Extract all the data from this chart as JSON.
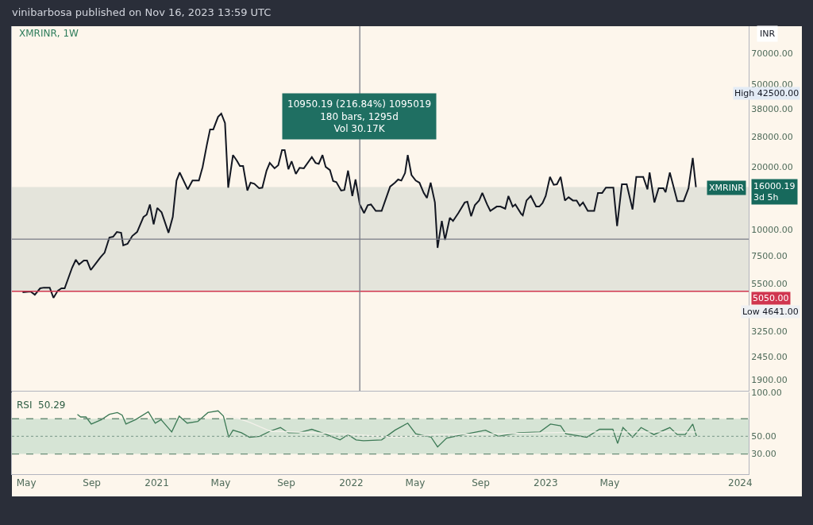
{
  "chart_data": [
    {
      "type": "line",
      "title": "vinibarbosa published on Nov 16, 2023 13:59 UTC",
      "subtitle": "XMRINR, 1W",
      "ylabel": "INR",
      "log": "y",
      "tick_labels": "y",
      "xlim": [
        "2020-04-04",
        "2024-01-17"
      ],
      "ylim": [
        1680,
        94900
      ],
      "yticks": [
        {
          "value": 1900,
          "label": "1900.00"
        },
        {
          "value": 2450,
          "label": "2450.00"
        },
        {
          "value": 3250,
          "label": "3250.00"
        },
        {
          "value": 5500,
          "label": "5500.00"
        },
        {
          "value": 7500,
          "label": "7500.00"
        },
        {
          "value": 10000,
          "label": "10000.00"
        },
        {
          "value": 20000,
          "label": "20000.00"
        },
        {
          "value": 28000,
          "label": "28000.00"
        },
        {
          "value": 38000,
          "label": "38000.00"
        },
        {
          "value": 50000,
          "label": "50000.00"
        },
        {
          "value": 70000,
          "label": "70000.00"
        }
      ],
      "x": [
        "2020-04-24",
        "2020-05-09",
        "2020-05-17",
        "2020-05-27",
        "2020-06-03",
        "2020-06-14",
        "2020-06-21",
        "2020-06-29",
        "2020-07-06",
        "2020-07-12",
        "2020-07-26",
        "2020-08-02",
        "2020-08-08",
        "2020-08-17",
        "2020-08-23",
        "2020-08-30",
        "2020-09-08",
        "2020-09-17",
        "2020-09-25",
        "2020-10-04",
        "2020-10-11",
        "2020-10-18",
        "2020-10-26",
        "2020-10-30",
        "2020-11-07",
        "2020-11-16",
        "2020-11-25",
        "2020-12-07",
        "2020-12-13",
        "2020-12-19",
        "2020-12-26",
        "2021-01-02",
        "2021-01-10",
        "2021-01-23",
        "2021-01-31",
        "2021-02-07",
        "2021-02-13",
        "2021-02-28",
        "2021-03-09",
        "2021-03-21",
        "2021-03-28",
        "2021-04-05",
        "2021-04-11",
        "2021-04-17",
        "2021-04-26",
        "2021-05-02",
        "2021-05-09",
        "2021-05-15",
        "2021-05-24",
        "2021-05-31",
        "2021-06-06",
        "2021-06-12",
        "2021-06-20",
        "2021-06-26",
        "2021-07-03",
        "2021-07-12",
        "2021-07-18",
        "2021-07-26",
        "2021-08-01",
        "2021-08-10",
        "2021-08-17",
        "2021-08-24",
        "2021-08-29",
        "2021-09-05",
        "2021-09-11",
        "2021-09-19",
        "2021-09-26",
        "2021-10-04",
        "2021-10-19",
        "2021-10-26",
        "2021-11-01",
        "2021-11-08",
        "2021-11-14",
        "2021-11-22",
        "2021-11-28",
        "2021-12-04",
        "2021-12-13",
        "2021-12-19",
        "2021-12-26",
        "2022-01-03",
        "2022-01-09",
        "2022-01-17",
        "2022-01-25",
        "2022-02-01",
        "2022-02-07",
        "2022-02-16",
        "2022-02-27",
        "2022-03-15",
        "2022-03-24",
        "2022-03-30",
        "2022-04-05",
        "2022-04-12",
        "2022-04-17",
        "2022-04-24",
        "2022-05-02",
        "2022-05-09",
        "2022-05-17",
        "2022-05-23",
        "2022-05-30",
        "2022-06-07",
        "2022-06-12",
        "2022-06-20",
        "2022-06-26",
        "2022-07-05",
        "2022-07-11",
        "2022-07-21",
        "2022-08-02",
        "2022-08-07",
        "2022-08-14",
        "2022-08-21",
        "2022-08-29",
        "2022-09-04",
        "2022-09-13",
        "2022-09-19",
        "2022-10-01",
        "2022-10-08",
        "2022-10-17",
        "2022-10-23",
        "2022-10-31",
        "2022-11-05",
        "2022-11-16",
        "2022-11-19",
        "2022-11-26",
        "2022-12-04",
        "2022-12-14",
        "2022-12-20",
        "2022-12-26",
        "2023-01-01",
        "2023-01-09",
        "2023-01-16",
        "2023-01-22",
        "2023-01-29",
        "2023-02-06",
        "2023-02-13",
        "2023-02-21",
        "2023-02-28",
        "2023-03-06",
        "2023-03-12",
        "2023-03-21",
        "2023-04-02",
        "2023-04-09",
        "2023-04-17",
        "2023-04-24",
        "2023-05-08",
        "2023-05-15",
        "2023-05-24",
        "2023-06-02",
        "2023-06-13",
        "2023-06-20",
        "2023-07-03",
        "2023-07-11",
        "2023-07-15",
        "2023-07-24",
        "2023-08-01",
        "2023-08-10",
        "2023-08-14",
        "2023-08-22",
        "2023-09-05",
        "2023-09-17",
        "2023-09-26",
        "2023-10-04",
        "2023-10-10"
      ],
      "series": [
        {
          "color": "#131722",
          "values": [
            5000,
            5040,
            4860,
            5220,
            5260,
            5260,
            4700,
            5080,
            5220,
            5220,
            6560,
            7160,
            6790,
            7100,
            7100,
            6390,
            6850,
            7350,
            7750,
            9160,
            9240,
            9740,
            9650,
            8390,
            8540,
            9320,
            9740,
            11500,
            11800,
            13200,
            10600,
            12700,
            12100,
            9650,
            11500,
            17200,
            18800,
            15600,
            17200,
            17200,
            20000,
            25600,
            30300,
            30300,
            34800,
            36100,
            32500,
            15900,
            22800,
            21500,
            20200,
            20200,
            15400,
            16800,
            16600,
            15800,
            15900,
            19200,
            20900,
            19700,
            20400,
            24100,
            24100,
            19500,
            21300,
            18500,
            19800,
            19700,
            22300,
            20900,
            20700,
            22800,
            20000,
            19300,
            17100,
            16900,
            15400,
            15500,
            19200,
            14500,
            17400,
            13200,
            12000,
            13100,
            13200,
            12300,
            12300,
            16100,
            16800,
            17400,
            17200,
            18700,
            22800,
            18300,
            17200,
            16800,
            15000,
            14200,
            16800,
            13500,
            8170,
            11000,
            8920,
            11400,
            11000,
            12000,
            13500,
            13600,
            11600,
            13100,
            13800,
            15000,
            13200,
            12300,
            12900,
            12900,
            12600,
            14500,
            12900,
            13200,
            11900,
            11700,
            13800,
            14500,
            12900,
            12900,
            13400,
            14500,
            17900,
            16400,
            16500,
            17900,
            13800,
            14300,
            13800,
            13800,
            13000,
            13500,
            12300,
            12300,
            15000,
            15000,
            15900,
            15900,
            10400,
            16500,
            16500,
            12500,
            17900,
            17900,
            15600,
            18800,
            13500,
            15800,
            15800,
            15100,
            18800,
            13700,
            13700,
            15800,
            22100,
            16000.19
          ]
        }
      ],
      "bands": [
        {
          "axis": "y",
          "from": 5050,
          "to": 16000.19,
          "color": "#dfe0d8"
        }
      ],
      "ref_lines": [
        {
          "axis": "y",
          "value": 5050,
          "label": "5050.00",
          "color": "#d0364f"
        },
        {
          "axis": "y",
          "value": 8989,
          "color": "#787b86"
        },
        {
          "axis": "x",
          "value": "2022-01-17",
          "color": "#787b86"
        }
      ],
      "annotations": [
        "10950.19 (216.84%) 1095019\n180 bars, 1295d\nVol 30.17K",
        "High 42500.00",
        "Low 4641.00",
        "XMRINR",
        "16000.19\n3d 5h"
      ]
    },
    {
      "type": "line",
      "title": "RSI  50.29",
      "xlim": [
        "2020-04-04",
        "2024-01-17"
      ],
      "ylim": [
        7,
        100
      ],
      "xticks": [
        {
          "value": "2020-05-01",
          "label": "May"
        },
        {
          "value": "2020-09-01",
          "label": "Sep"
        },
        {
          "value": "2021-01-01",
          "label": "2021"
        },
        {
          "value": "2021-05-01",
          "label": "May"
        },
        {
          "value": "2021-09-01",
          "label": "Sep"
        },
        {
          "value": "2022-01-01",
          "label": "2022"
        },
        {
          "value": "2022-05-01",
          "label": "May"
        },
        {
          "value": "2022-09-01",
          "label": "Sep"
        },
        {
          "value": "2023-01-01",
          "label": "2023"
        },
        {
          "value": "2023-05-01",
          "label": "May"
        },
        {
          "value": "2024-01-01",
          "label": "2024"
        }
      ],
      "yticks": [
        {
          "value": 30,
          "label": "30.00"
        },
        {
          "value": 50,
          "label": "50.00"
        },
        {
          "value": 100,
          "label": "100.00"
        }
      ],
      "x": [
        "2020-08-05",
        "2020-08-11",
        "2020-08-21",
        "2020-08-31",
        "2020-09-19",
        "2020-10-04",
        "2020-10-19",
        "2020-10-28",
        "2020-11-04",
        "2020-11-22",
        "2020-12-16",
        "2020-12-29",
        "2021-01-09",
        "2021-01-29",
        "2021-02-12",
        "2021-02-27",
        "2021-03-19",
        "2021-04-07",
        "2021-04-26",
        "2021-05-06",
        "2021-05-16",
        "2021-05-24",
        "2021-06-09",
        "2021-06-24",
        "2021-07-13",
        "2021-08-02",
        "2021-08-21",
        "2021-09-05",
        "2021-09-24",
        "2021-10-19",
        "2021-11-12",
        "2021-12-11",
        "2021-12-26",
        "2022-01-10",
        "2022-01-24",
        "2022-02-27",
        "2022-03-24",
        "2022-04-17",
        "2022-05-02",
        "2022-05-31",
        "2022-06-12",
        "2022-06-29",
        "2022-08-07",
        "2022-09-10",
        "2022-10-04",
        "2022-11-12",
        "2022-12-21",
        "2023-01-10",
        "2023-01-29",
        "2023-02-08",
        "2023-03-19",
        "2023-04-12",
        "2023-05-07",
        "2023-05-16",
        "2023-05-26",
        "2023-06-13",
        "2023-06-29",
        "2023-07-23",
        "2023-08-22",
        "2023-09-05",
        "2023-09-20",
        "2023-10-04",
        "2023-10-11"
      ],
      "series": [
        {
          "color": "#3d7a56",
          "values": [
            75,
            72,
            72,
            64,
            69,
            75,
            77,
            74,
            64,
            69,
            78,
            65,
            69,
            55,
            73,
            65,
            67,
            77,
            79,
            73,
            49,
            57,
            54,
            49,
            50,
            56,
            60,
            54,
            54,
            58,
            53,
            46,
            52,
            46,
            45,
            46,
            57,
            65,
            53,
            49,
            38,
            48,
            53,
            57,
            50,
            54,
            55,
            64,
            62,
            53,
            49,
            58,
            58,
            42,
            60,
            49,
            60,
            52,
            60,
            52,
            52,
            64,
            50.29
          ]
        },
        {
          "color": "#f3f1ea",
          "x": [
            "2021-05-06",
            "2021-06-24",
            "2021-08-02",
            "2021-12-11",
            "2022-03-24",
            "2022-06-12",
            "2022-10-04",
            "2023-03-19",
            "2023-10-11"
          ],
          "values": [
            76,
            66,
            56,
            53,
            49,
            52,
            53,
            55,
            55
          ]
        }
      ],
      "bands": [
        {
          "axis": "y",
          "from": 30,
          "to": 70,
          "color": "#cfe1d1"
        }
      ],
      "ref_lines": [
        {
          "axis": "y",
          "value": 70,
          "color": "#6b8f78",
          "line_style": "dashed"
        },
        {
          "axis": "y",
          "value": 50,
          "color": "#8aa596",
          "line_style": "dotted"
        },
        {
          "axis": "y",
          "value": 30,
          "color": "#6b8f78",
          "line_style": "dashed"
        }
      ]
    }
  ]
}
